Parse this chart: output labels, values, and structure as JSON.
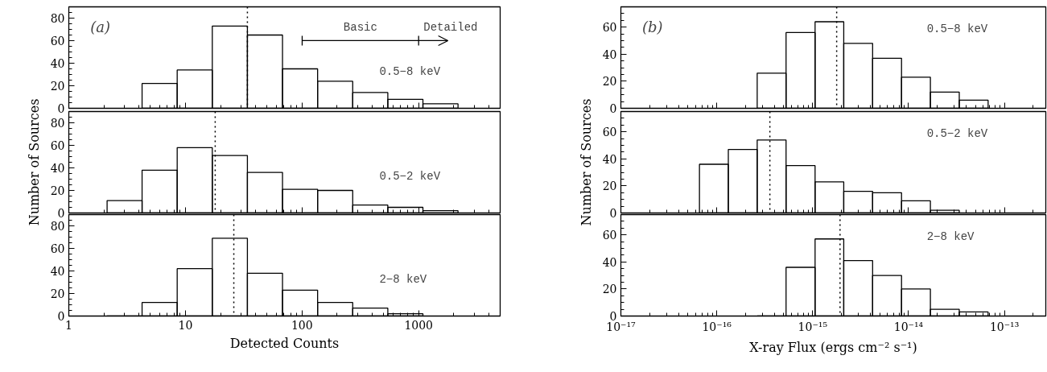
{
  "chart_data": [
    {
      "type": "histogram",
      "title": "(a)",
      "color": "#000000",
      "log": "x",
      "tick_labels": "y",
      "xlim": [
        1,
        5000
      ],
      "xticks": [
        1,
        10,
        100,
        1000
      ],
      "ylim": [
        0,
        90
      ],
      "yticks": [
        0,
        20,
        40,
        60,
        80
      ],
      "bins": [
        4.25,
        8.5,
        17,
        34,
        68,
        136,
        272,
        544,
        1088,
        2176
      ],
      "values": [
        22,
        34,
        73,
        65,
        35,
        24,
        14,
        8,
        4
      ],
      "ref_lines": [
        {
          "axis": "x",
          "value": 34,
          "color": "#000000",
          "line_style": "dotted"
        }
      ],
      "annotations": [
        "Basic",
        "Detailed",
        "0.5−8 keV"
      ]
    },
    {
      "type": "histogram",
      "ylabel": "Number of Sources",
      "color": "#000000",
      "log": "x",
      "tick_labels": "y",
      "xlim": [
        1,
        5000
      ],
      "xticks": [
        1,
        10,
        100,
        1000
      ],
      "ylim": [
        0,
        90
      ],
      "yticks": [
        0,
        20,
        40,
        60,
        80
      ],
      "bins": [
        2.13,
        4.25,
        8.5,
        17,
        34,
        68,
        136,
        272,
        544,
        1088,
        2176
      ],
      "values": [
        11,
        38,
        58,
        51,
        36,
        21,
        20,
        7,
        5,
        2
      ],
      "ref_lines": [
        {
          "axis": "x",
          "value": 18,
          "color": "#000000",
          "line_style": "dotted"
        }
      ],
      "annotations": [
        "0.5−2 keV"
      ]
    },
    {
      "type": "histogram",
      "xlabel": "Detected Counts",
      "color": "#000000",
      "log": "x",
      "xlim": [
        1,
        5000
      ],
      "xticks": [
        1,
        10,
        100,
        1000
      ],
      "ylim": [
        0,
        90
      ],
      "yticks": [
        0,
        20,
        40,
        60,
        80
      ],
      "bins": [
        2.13,
        4.25,
        8.5,
        17,
        34,
        68,
        136,
        272,
        544,
        1088
      ],
      "values": [
        0,
        12,
        42,
        69,
        38,
        23,
        12,
        7,
        2
      ],
      "ref_lines": [
        {
          "axis": "x",
          "value": 26,
          "color": "#000000",
          "line_style": "dotted"
        }
      ],
      "annotations": [
        "2−8 keV"
      ]
    },
    {
      "type": "histogram",
      "title": "(b)",
      "color": "#000000",
      "log": "x",
      "tick_labels": "y",
      "xlim": [
        1e-17,
        2.7e-13
      ],
      "xticks": [
        {
          "value": 1e-17,
          "label": null
        },
        {
          "value": 1e-16,
          "label": null
        },
        {
          "value": 1e-15,
          "label": null
        },
        {
          "value": 1e-14,
          "label": null
        },
        {
          "value": 1e-13,
          "label": null
        }
      ],
      "ylim": [
        0,
        75
      ],
      "yticks": [
        0,
        20,
        40,
        60
      ],
      "bins": [
        2.64e-16,
        5.28e-16,
        1.06e-15,
        2.11e-15,
        4.22e-15,
        8.45e-15,
        1.69e-14,
        3.38e-14,
        6.76e-14
      ],
      "values": [
        26,
        56,
        64,
        48,
        37,
        23,
        12,
        6
      ],
      "ref_lines": [
        {
          "axis": "x",
          "value": 1.78e-15,
          "color": "#000000",
          "line_style": "dotted"
        }
      ],
      "annotations": [
        "0.5−8 keV"
      ]
    },
    {
      "type": "histogram",
      "ylabel": "Number of Sources",
      "color": "#000000",
      "log": "x",
      "tick_labels": "y",
      "xlim": [
        1e-17,
        2.7e-13
      ],
      "xticks": [
        {
          "value": 1e-17,
          "label": null
        },
        {
          "value": 1e-16,
          "label": null
        },
        {
          "value": 1e-15,
          "label": null
        },
        {
          "value": 1e-14,
          "label": null
        },
        {
          "value": 1e-13,
          "label": null
        }
      ],
      "ylim": [
        0,
        75
      ],
      "yticks": [
        0,
        20,
        40,
        60
      ],
      "bins": [
        6.6e-17,
        1.32e-16,
        2.64e-16,
        5.28e-16,
        1.06e-15,
        2.11e-15,
        4.22e-15,
        8.45e-15,
        1.69e-14,
        3.38e-14
      ],
      "values": [
        36,
        47,
        54,
        35,
        23,
        16,
        15,
        9,
        2
      ],
      "ref_lines": [
        {
          "axis": "x",
          "value": 3.58e-16,
          "color": "#000000",
          "line_style": "dotted"
        }
      ],
      "annotations": [
        "0.5−2 keV"
      ]
    },
    {
      "type": "histogram",
      "xlabel": "X-ray Flux (ergs cm⁻² s⁻¹)",
      "color": "#000000",
      "log": "x",
      "xlim": [
        1e-17,
        2.7e-13
      ],
      "xticks": [
        {
          "value": 1e-17,
          "label": "10⁻¹⁷"
        },
        {
          "value": 1e-16,
          "label": "10⁻¹⁶"
        },
        {
          "value": 1e-15,
          "label": "10⁻¹⁵"
        },
        {
          "value": 1e-14,
          "label": "10⁻¹⁴"
        },
        {
          "value": 1e-13,
          "label": "10⁻¹³"
        }
      ],
      "ylim": [
        0,
        75
      ],
      "yticks": [
        0,
        20,
        40,
        60
      ],
      "bins": [
        2.64e-16,
        5.28e-16,
        1.06e-15,
        2.11e-15,
        4.22e-15,
        8.45e-15,
        1.69e-14,
        3.38e-14,
        6.76e-14
      ],
      "values": [
        0,
        36,
        57,
        41,
        30,
        20,
        5,
        3
      ],
      "ref_lines": [
        {
          "axis": "x",
          "value": 1.93e-15,
          "color": "#000000",
          "line_style": "dotted"
        }
      ],
      "annotations": [
        "2−8 keV"
      ]
    }
  ]
}
